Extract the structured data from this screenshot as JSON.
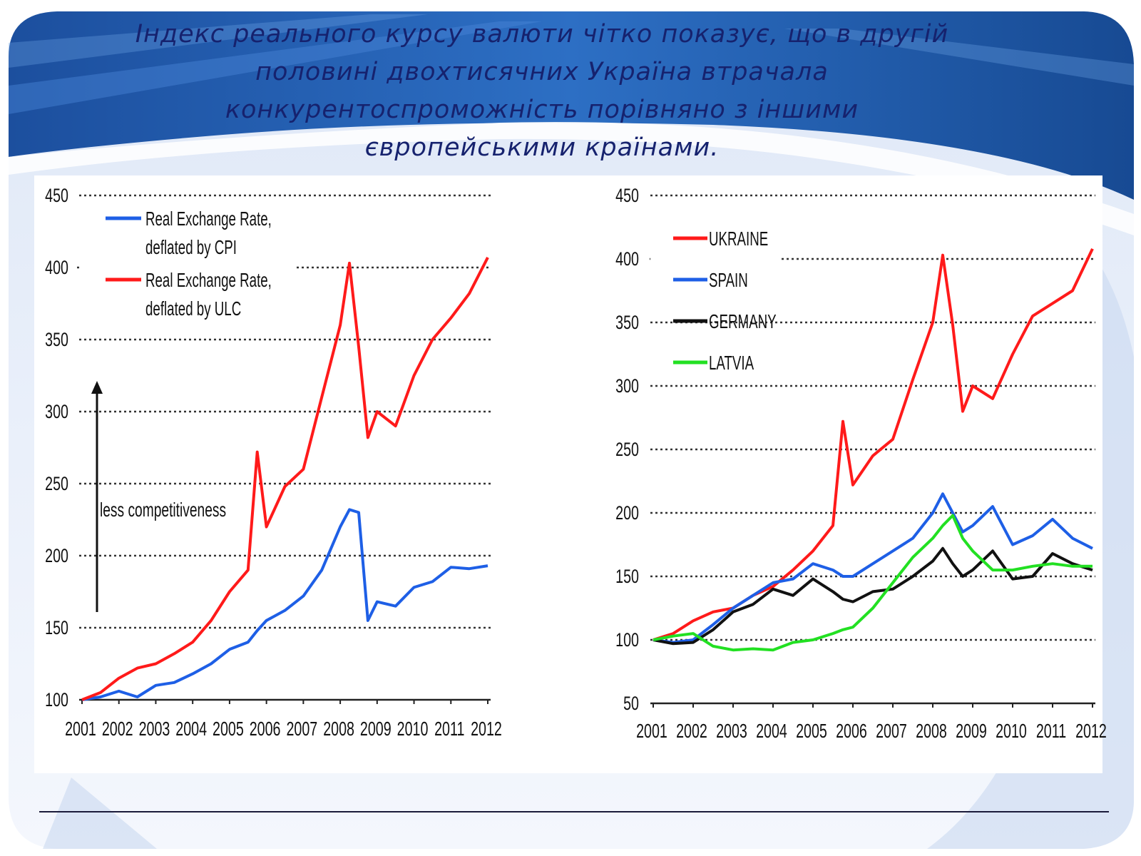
{
  "slide": {
    "title_lines": [
      "Індекс реального курсу валюти чітко показує, що в другій",
      "половині двохтисячних Україна втрачала",
      "конкурентоспроможність порівняно з іншими",
      "європейськими країнами."
    ]
  },
  "colors": {
    "title": "#16226e",
    "red": "#ff1a1a",
    "blue": "#1e5fe6",
    "black": "#111111",
    "green": "#22e022"
  },
  "chart_data": [
    {
      "type": "line",
      "x": [
        2001,
        2001.5,
        2002,
        2002.5,
        2003,
        2003.5,
        2004,
        2004.5,
        2005,
        2005.5,
        2005.75,
        2006,
        2006.5,
        2007,
        2007.5,
        2008,
        2008.25,
        2008.5,
        2008.75,
        2009,
        2009.5,
        2010,
        2010.5,
        2011,
        2011.5,
        2012
      ],
      "x_ticks": [
        "2001",
        "2002",
        "2003",
        "2004",
        "2005",
        "2006",
        "2007",
        "2008",
        "2009",
        "2010",
        "2011",
        "2012"
      ],
      "y_ticks": [
        "100",
        "150",
        "200",
        "250",
        "300",
        "350",
        "400",
        "450"
      ],
      "ylim": [
        100,
        450
      ],
      "grid": "horizontal dotted",
      "legend_position": "top-left",
      "series": [
        {
          "name": "Real Exchange Rate, deflated by CPI",
          "color": "#1e5fe6",
          "values": [
            100,
            102,
            106,
            102,
            110,
            112,
            118,
            125,
            135,
            140,
            148,
            155,
            162,
            172,
            190,
            220,
            232,
            230,
            155,
            168,
            165,
            178,
            182,
            192,
            191,
            193
          ]
        },
        {
          "name": "Real Exchange Rate, deflated by ULC",
          "color": "#ff1a1a",
          "values": [
            100,
            105,
            115,
            122,
            125,
            132,
            140,
            155,
            175,
            190,
            272,
            220,
            248,
            260,
            310,
            360,
            403,
            345,
            282,
            300,
            290,
            325,
            350,
            365,
            382,
            407
          ]
        }
      ],
      "annotation": "less competitiveness"
    },
    {
      "type": "line",
      "x": [
        2001,
        2001.5,
        2002,
        2002.5,
        2003,
        2003.5,
        2004,
        2004.5,
        2005,
        2005.5,
        2005.75,
        2006,
        2006.5,
        2007,
        2007.5,
        2008,
        2008.25,
        2008.5,
        2008.75,
        2009,
        2009.5,
        2010,
        2010.5,
        2011,
        2011.5,
        2012
      ],
      "x_ticks": [
        "2001",
        "2002",
        "2003",
        "2004",
        "2005",
        "2006",
        "2007",
        "2008",
        "2009",
        "2010",
        "2011",
        "2012"
      ],
      "y_ticks": [
        "50",
        "100",
        "150",
        "200",
        "250",
        "300",
        "350",
        "400",
        "450"
      ],
      "ylim": [
        50,
        450
      ],
      "grid": "horizontal dotted",
      "legend_position": "top-left",
      "series": [
        {
          "name": "UKRAINE",
          "color": "#ff1a1a",
          "values": [
            100,
            105,
            115,
            122,
            125,
            135,
            142,
            155,
            170,
            190,
            272,
            222,
            245,
            258,
            305,
            350,
            403,
            348,
            280,
            300,
            290,
            325,
            355,
            365,
            375,
            408
          ]
        },
        {
          "name": "SPAIN",
          "color": "#1e5fe6",
          "values": [
            100,
            98,
            100,
            112,
            125,
            135,
            145,
            148,
            160,
            155,
            150,
            150,
            160,
            170,
            180,
            200,
            215,
            200,
            185,
            190,
            205,
            175,
            182,
            195,
            180,
            172
          ]
        },
        {
          "name": "GERMANY",
          "color": "#111111",
          "values": [
            100,
            97,
            98,
            108,
            122,
            128,
            140,
            135,
            148,
            138,
            132,
            130,
            138,
            140,
            150,
            162,
            172,
            160,
            150,
            155,
            170,
            148,
            150,
            168,
            160,
            155
          ]
        },
        {
          "name": "LATVIA",
          "color": "#22e022",
          "values": [
            100,
            103,
            105,
            95,
            92,
            93,
            92,
            98,
            100,
            105,
            108,
            110,
            125,
            145,
            165,
            180,
            190,
            198,
            180,
            170,
            155,
            155,
            158,
            160,
            158,
            158
          ]
        }
      ]
    }
  ]
}
